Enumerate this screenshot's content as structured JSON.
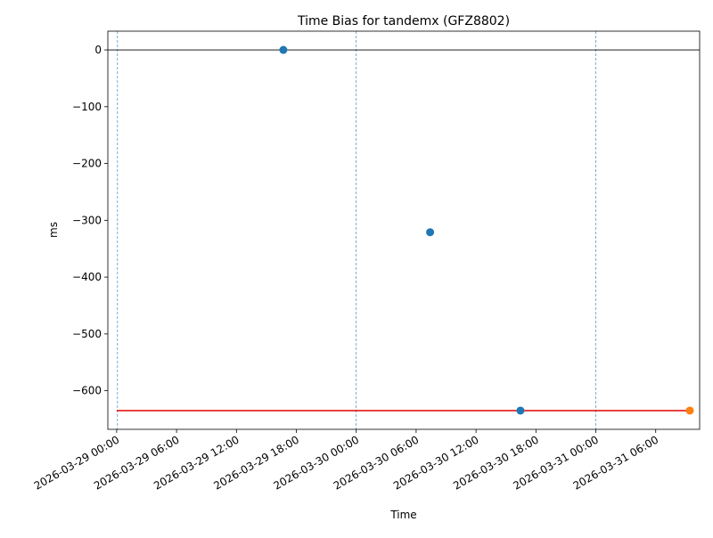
{
  "chart_data": {
    "type": "scatter",
    "title": "Time Bias for tandemx (GFZ8802)",
    "x_label": "Time",
    "y_label": "ms",
    "series": [
      {
        "color": "#1f77b4",
        "x": [
          "2026-03-29 16:42",
          "2026-03-30 07:24",
          "2026-03-30 16:27"
        ],
        "values": [
          0,
          -321,
          -635
        ]
      },
      {
        "color": "#ff7f0e",
        "x": [
          "2026-03-31 09:25"
        ],
        "values": [
          -635
        ]
      }
    ],
    "hlines": [
      {
        "value": 0,
        "color": "#000000",
        "width": 0.8,
        "x": null
      },
      {
        "value": -635,
        "color": "#e00000",
        "width": 1.5,
        "x": [
          "2026-03-29 00:00",
          "2026-03-31 09:25"
        ]
      }
    ],
    "vlines": {
      "color": "#1f77b4",
      "x": [
        "2026-03-29 00:05",
        "2026-03-30 00:00",
        "2026-03-31 00:00"
      ]
    },
    "xlim": [
      "2026-03-28 23:07",
      "2026-03-31 10:24"
    ],
    "xticks": [
      "2026-03-29 00:00",
      "2026-03-29 06:00",
      "2026-03-29 12:00",
      "2026-03-29 18:00",
      "2026-03-30 00:00",
      "2026-03-30 06:00",
      "2026-03-30 12:00",
      "2026-03-30 18:00",
      "2026-03-31 00:00",
      "2026-03-31 06:00"
    ],
    "ylim": [
      -668,
      33
    ],
    "yticks": [
      {
        "value": -600,
        "label": "−600"
      },
      {
        "value": -500,
        "label": "−500"
      },
      {
        "value": -400,
        "label": "−400"
      },
      {
        "value": -300,
        "label": "−300"
      },
      {
        "value": -200,
        "label": "−200"
      },
      {
        "value": -100,
        "label": "−100"
      },
      0
    ]
  }
}
